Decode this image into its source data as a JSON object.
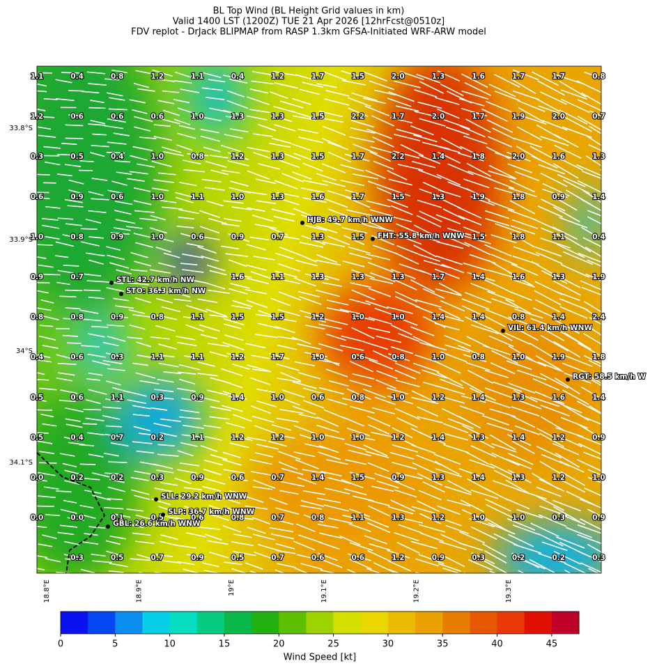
{
  "title_lines": [
    "BL Top Wind (BL Height Grid values in km)",
    "Valid 1400 LST (1200Z) TUE 21 Apr 2026 [12hrFcst@0510z]",
    "FDV replot - DrJack BLIPMAP from RASP 1.3km GFSA-Initiated WRF-ARW model"
  ],
  "grid_values": [
    [
      "1.1",
      "0.4",
      "0.8",
      "1.2",
      "1.1",
      "0.4",
      "1.2",
      "1.7",
      "1.5",
      "2.0",
      "1.3",
      "1.6",
      "1.7",
      "1.7",
      "0.8"
    ],
    [
      "1.2",
      "0.6",
      "0.6",
      "0.6",
      "1.0",
      "1.3",
      "1.3",
      "1.5",
      "2.2",
      "1.7",
      "2.0",
      "1.7",
      "1.9",
      "2.0",
      "0.7"
    ],
    [
      "0.3",
      "0.5",
      "0.4",
      "1.0",
      "0.8",
      "1.2",
      "1.3",
      "1.5",
      "1.7",
      "2.2",
      "1.4",
      "1.8",
      "2.0",
      "1.6",
      "1.3"
    ],
    [
      "0.6",
      "0.9",
      "0.6",
      "1.0",
      "1.1",
      "1.0",
      "1.3",
      "1.6",
      "1.7",
      "1.5",
      "1.3",
      "1.9",
      "1.8",
      "0.9",
      "1.4"
    ],
    [
      "1.0",
      "0.8",
      "0.9",
      "1.0",
      "0.6",
      "0.9",
      "0.7",
      "1.3",
      "1.5",
      null,
      null,
      "1.5",
      "1.8",
      "1.1",
      "0.4"
    ],
    [
      "0.9",
      "0.7",
      null,
      null,
      null,
      "1.6",
      "1.1",
      "1.3",
      "1.3",
      "1.3",
      "1.7",
      "1.4",
      "1.6",
      "1.3",
      "1.9"
    ],
    [
      "0.8",
      "0.8",
      "0.9",
      "0.8",
      "1.1",
      "1.5",
      "1.5",
      "1.2",
      "1.0",
      "1.0",
      "1.4",
      "1.4",
      "0.8",
      "1.4",
      "2.4"
    ],
    [
      "0.4",
      "0.6",
      "0.3",
      "1.1",
      "1.1",
      "1.2",
      "1.7",
      "1.0",
      "0.6",
      "0.8",
      "1.0",
      "0.8",
      "1.0",
      "1.9",
      "1.8"
    ],
    [
      "0.5",
      "0.6",
      "1.1",
      "0.3",
      "0.9",
      "1.4",
      "1.0",
      "0.6",
      "0.8",
      "1.0",
      "1.2",
      "1.4",
      "1.3",
      "1.6",
      "1.4"
    ],
    [
      "0.5",
      "0.4",
      "0.7",
      "0.2",
      "1.1",
      "1.2",
      "1.2",
      "1.0",
      "1.0",
      "1.2",
      "1.4",
      "1.3",
      "1.4",
      "1.2",
      "0.9"
    ],
    [
      "0.0",
      "0.2",
      "0.2",
      "0.3",
      "0.9",
      "0.6",
      "0.7",
      "1.4",
      "1.5",
      "0.9",
      "1.3",
      "1.4",
      "1.3",
      "1.2",
      "1.0"
    ],
    [
      "0.0",
      "0.0",
      "0.1",
      "0.5",
      "0.6",
      "0.8",
      "0.7",
      "0.8",
      "1.1",
      "1.3",
      "1.2",
      "1.0",
      "1.0",
      "0.3",
      "0.9"
    ],
    [
      null,
      "0.3",
      "0.5",
      "0.7",
      "0.9",
      "0.5",
      "0.7",
      "0.6",
      "0.6",
      "1.2",
      "0.9",
      "0.3",
      "0.2",
      "0.2",
      "0.3"
    ]
  ],
  "stations": [
    "HJB: 49.7 km/h WNW",
    "FHT: 55.8 km/h WNW",
    "STL: 42.7 km/h NW",
    "STO: 36.3 km/h NW",
    "VIL: 61.4 km/h WNW",
    "RGT: 58.5 km/h W",
    "SLL: 29.2 km/h WNW",
    "SLP: 36.7 km/h WNW",
    "GBL: 26.6 km/h WNW"
  ],
  "lat_labels": [
    "33.8°S",
    "33.9°S",
    "34°S",
    "34.1°S"
  ],
  "lon_labels": [
    "18.8°E",
    "18.9°E",
    "19°E",
    "19.1°E",
    "19.2°E",
    "19.3°E"
  ],
  "colorbar": {
    "label": "Wind Speed [kt]",
    "range": [
      0,
      47.5
    ],
    "ticks": [
      0,
      5,
      10,
      15,
      20,
      25,
      30,
      35,
      40,
      45
    ],
    "colors": [
      "#0a12f0",
      "#0446ef",
      "#0a8ef0",
      "#06d0e8",
      "#05dcc0",
      "#07cb80",
      "#0ab84a",
      "#21b010",
      "#5cc000",
      "#9cd200",
      "#d4e000",
      "#ecd600",
      "#ecba00",
      "#eaa000",
      "#e87e00",
      "#e65800",
      "#ea3808",
      "#e01004",
      "#be0028"
    ]
  }
}
